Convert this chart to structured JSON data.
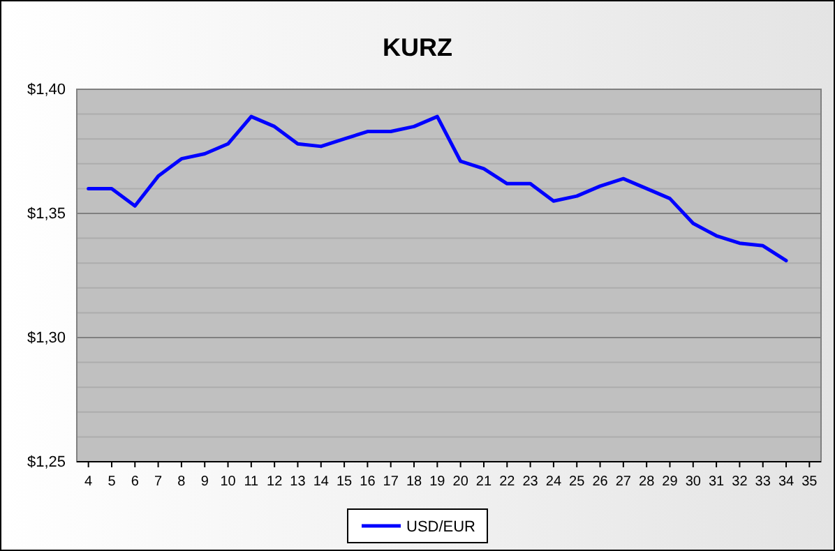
{
  "chart_data": {
    "type": "line",
    "title": "KURZ",
    "categories": [
      "4",
      "5",
      "6",
      "7",
      "8",
      "9",
      "10",
      "11",
      "12",
      "13",
      "14",
      "15",
      "16",
      "17",
      "18",
      "19",
      "20",
      "21",
      "22",
      "23",
      "24",
      "25",
      "26",
      "27",
      "28",
      "29",
      "30",
      "31",
      "32",
      "33",
      "34",
      "35"
    ],
    "series": [
      {
        "name": "USD/EUR",
        "color": "#0000ff",
        "values": [
          1.36,
          1.36,
          1.353,
          1.365,
          1.372,
          1.374,
          1.378,
          1.389,
          1.385,
          1.378,
          1.377,
          1.38,
          1.383,
          1.383,
          1.385,
          1.389,
          1.371,
          1.368,
          1.362,
          1.362,
          1.355,
          1.357,
          1.361,
          1.364,
          1.36,
          1.356,
          1.346,
          1.341,
          1.338,
          1.337,
          1.331,
          null
        ]
      }
    ],
    "ylim": [
      1.25,
      1.4
    ],
    "yticks": [
      {
        "value": 1.25,
        "label": "$1,25"
      },
      {
        "value": 1.26,
        "label": null
      },
      {
        "value": 1.27,
        "label": null
      },
      {
        "value": 1.28,
        "label": null
      },
      {
        "value": 1.29,
        "label": null
      },
      {
        "value": 1.3,
        "label": "$1,30"
      },
      {
        "value": 1.31,
        "label": null
      },
      {
        "value": 1.32,
        "label": null
      },
      {
        "value": 1.33,
        "label": null
      },
      {
        "value": 1.34,
        "label": null
      },
      {
        "value": 1.35,
        "label": "$1,35"
      },
      {
        "value": 1.36,
        "label": null
      },
      {
        "value": 1.37,
        "label": null
      },
      {
        "value": 1.38,
        "label": null
      },
      {
        "value": 1.39,
        "label": null
      },
      {
        "value": 1.4,
        "label": "$1,40"
      }
    ],
    "grid": "y",
    "legend": "bottom",
    "marker": "none",
    "line_style": "solid"
  }
}
